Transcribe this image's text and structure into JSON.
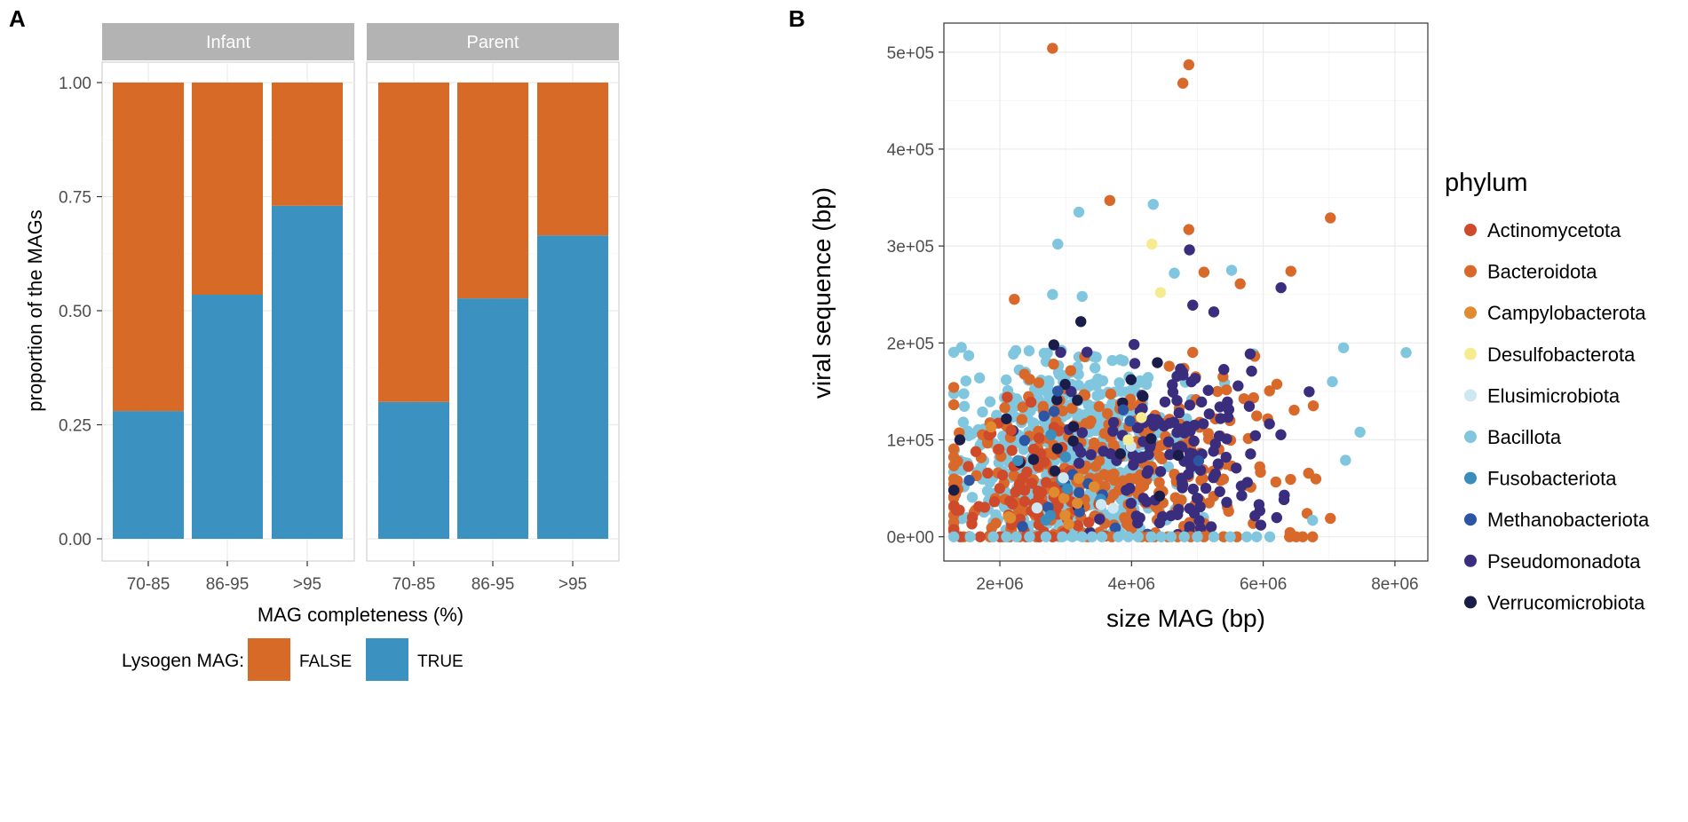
{
  "panel_labels": {
    "a": "A",
    "b": "B"
  },
  "colors": {
    "false_fill": "#D86A28",
    "true_fill": "#3B92C0",
    "strip_bg": "#B3B3B3",
    "strip_text": "#ffffff",
    "grid": "#EBEBEB",
    "axis_text": "#4D4D4D",
    "panel_border": "#C8C8C8",
    "phylum": {
      "Actinomycetota": "#CF4A2A",
      "Bacteroidota": "#D8692B",
      "Campylobacterota": "#E08B2F",
      "Desulfobacterota": "#F6EB91",
      "Elusimicrobiota": "#CDE8F0",
      "Bacillota": "#80C6DE",
      "Fusobacteriota": "#3A8DBD",
      "Methanobacteriota": "#2C55A3",
      "Pseudomonadota": "#3A2D7E",
      "Verrucomicrobiota": "#1A1C4A"
    }
  },
  "chart_data": [
    {
      "type": "bar",
      "stacked": true,
      "facets": [
        "Infant",
        "Parent"
      ],
      "categories": [
        "70-85",
        "86-95",
        ">95"
      ],
      "series": [
        {
          "name": "TRUE",
          "facet_values": {
            "Infant": [
              0.28,
              0.535,
              0.73
            ],
            "Parent": [
              0.3,
              0.527,
              0.665
            ]
          }
        },
        {
          "name": "FALSE",
          "facet_values": {
            "Infant": [
              0.72,
              0.465,
              0.27
            ],
            "Parent": [
              0.7,
              0.473,
              0.335
            ]
          }
        }
      ],
      "xlabel": "MAG completeness (%)",
      "ylabel": "proportion of the MAGs",
      "ylim": [
        0,
        1
      ],
      "yticks": [
        0.0,
        0.25,
        0.5,
        0.75,
        1.0
      ],
      "ytick_labels": [
        "0.00",
        "0.25",
        "0.50",
        "0.75",
        "1.00"
      ],
      "grid": true,
      "legend": {
        "title": "Lysogen MAG:",
        "placement": "bottom",
        "entries": [
          "FALSE",
          "TRUE"
        ]
      }
    },
    {
      "type": "scatter",
      "xlabel": "size MAG (bp)",
      "ylabel": "viral sequence (bp)",
      "xlim": [
        1150000,
        8500000
      ],
      "ylim": [
        -25000,
        530000
      ],
      "xticks": [
        2000000,
        4000000,
        6000000,
        8000000
      ],
      "xtick_labels": [
        "2e+06",
        "4e+06",
        "6e+06",
        "8e+06"
      ],
      "yticks": [
        0,
        100000,
        200000,
        300000,
        400000,
        500000
      ],
      "ytick_labels": [
        "0e+00",
        "1e+05",
        "2e+05",
        "3e+05",
        "4e+05",
        "5e+05"
      ],
      "grid": true,
      "legend": {
        "title": "phylum",
        "placement": "right",
        "entries": [
          "Actinomycetota",
          "Bacteroidota",
          "Campylobacterota",
          "Desulfobacterota",
          "Elusimicrobiota",
          "Bacillota",
          "Fusobacteriota",
          "Methanobacteriota",
          "Pseudomonadota",
          "Verrucomicrobiota"
        ]
      },
      "highlight_points": [
        {
          "phylum": "Bacteroidota",
          "x": 2800000,
          "y": 504000
        },
        {
          "phylum": "Bacteroidota",
          "x": 4870000,
          "y": 487000
        },
        {
          "phylum": "Bacteroidota",
          "x": 4780000,
          "y": 468000
        },
        {
          "phylum": "Bacteroidota",
          "x": 3670000,
          "y": 347000
        },
        {
          "phylum": "Bacteroidota",
          "x": 7020000,
          "y": 329000
        },
        {
          "phylum": "Bacteroidota",
          "x": 4870000,
          "y": 317000
        },
        {
          "phylum": "Bacteroidota",
          "x": 6420000,
          "y": 274000
        },
        {
          "phylum": "Bacteroidota",
          "x": 5100000,
          "y": 273000
        },
        {
          "phylum": "Bacteroidota",
          "x": 5650000,
          "y": 261000
        },
        {
          "phylum": "Bacteroidota",
          "x": 2220000,
          "y": 245000
        },
        {
          "phylum": "Bacteroidota",
          "x": 7020000,
          "y": 19000
        },
        {
          "phylum": "Bacillota",
          "x": 4330000,
          "y": 343000
        },
        {
          "phylum": "Bacillota",
          "x": 3200000,
          "y": 335000
        },
        {
          "phylum": "Bacillota",
          "x": 2880000,
          "y": 302000
        },
        {
          "phylum": "Bacillota",
          "x": 5520000,
          "y": 275000
        },
        {
          "phylum": "Bacillota",
          "x": 4650000,
          "y": 272000
        },
        {
          "phylum": "Bacillota",
          "x": 3250000,
          "y": 248000
        },
        {
          "phylum": "Bacillota",
          "x": 2800000,
          "y": 250000
        },
        {
          "phylum": "Bacillota",
          "x": 8170000,
          "y": 190000
        },
        {
          "phylum": "Bacillota",
          "x": 7220000,
          "y": 195000
        },
        {
          "phylum": "Bacillota",
          "x": 7470000,
          "y": 108000
        },
        {
          "phylum": "Bacillota",
          "x": 7050000,
          "y": 160000
        },
        {
          "phylum": "Bacillota",
          "x": 7250000,
          "y": 79000
        },
        {
          "phylum": "Bacillota",
          "x": 6750000,
          "y": 17000
        },
        {
          "phylum": "Desulfobacterota",
          "x": 4310000,
          "y": 302000
        },
        {
          "phylum": "Desulfobacterota",
          "x": 4440000,
          "y": 252000
        },
        {
          "phylum": "Desulfobacterota",
          "x": 4150000,
          "y": 123000
        },
        {
          "phylum": "Desulfobacterota",
          "x": 3950000,
          "y": 100000
        },
        {
          "phylum": "Pseudomonadota",
          "x": 4880000,
          "y": 296000
        },
        {
          "phylum": "Pseudomonadota",
          "x": 6270000,
          "y": 257000
        },
        {
          "phylum": "Pseudomonadota",
          "x": 4930000,
          "y": 239000
        },
        {
          "phylum": "Pseudomonadota",
          "x": 5250000,
          "y": 232000
        },
        {
          "phylum": "Verrucomicrobiota",
          "x": 3230000,
          "y": 222000
        },
        {
          "phylum": "Verrucomicrobiota",
          "x": 2820000,
          "y": 198000
        }
      ],
      "clusters": [
        {
          "phylum": "Bacillota",
          "n": 620,
          "x_mean": 3000000,
          "x_sd": 750000,
          "y_mean": 80000,
          "y_sd": 60000
        },
        {
          "phylum": "Bacteroidota",
          "n": 300,
          "x_mean": 3700000,
          "x_sd": 1300000,
          "y_mean": 75000,
          "y_sd": 60000
        },
        {
          "phylum": "Pseudomonadota",
          "n": 150,
          "x_mean": 4600000,
          "x_sd": 800000,
          "y_mean": 90000,
          "y_sd": 55000
        },
        {
          "phylum": "Actinomycetota",
          "n": 90,
          "x_mean": 2400000,
          "x_sd": 500000,
          "y_mean": 45000,
          "y_sd": 40000
        },
        {
          "phylum": "Verrucomicrobiota",
          "n": 22,
          "x_mean": 3400000,
          "x_sd": 900000,
          "y_mean": 90000,
          "y_sd": 50000
        },
        {
          "phylum": "Methanobacteriota",
          "n": 18,
          "x_mean": 3000000,
          "x_sd": 900000,
          "y_mean": 70000,
          "y_sd": 45000
        },
        {
          "phylum": "Campylobacterota",
          "n": 10,
          "x_mean": 2600000,
          "x_sd": 600000,
          "y_mean": 40000,
          "y_sd": 30000
        },
        {
          "phylum": "Fusobacteriota",
          "n": 8,
          "x_mean": 2900000,
          "x_sd": 600000,
          "y_mean": 50000,
          "y_sd": 35000
        },
        {
          "phylum": "Elusimicrobiota",
          "n": 6,
          "x_mean": 3200000,
          "x_sd": 700000,
          "y_mean": 30000,
          "y_sd": 30000
        }
      ],
      "zero_row": [
        {
          "phylum": "Bacteroidota",
          "x_values": [
            1450000,
            1850000,
            2050000,
            2150000,
            2300000,
            2550000,
            3700000,
            4150000,
            4250000,
            4350000,
            4550000,
            4700000,
            4900000,
            5100000,
            5400000,
            5600000,
            6400000,
            6500000,
            6600000,
            6750000
          ]
        },
        {
          "phylum": "Actinomycetota",
          "x_values": [
            1400000,
            1700000,
            2000000,
            2400000,
            2600000,
            2800000
          ]
        },
        {
          "phylum": "Bacillota",
          "x_values": [
            1300000,
            1550000,
            1900000,
            2100000,
            2250000,
            2450000,
            2700000,
            2950000,
            3100000,
            3250000,
            3400000,
            3550000,
            3800000,
            3950000,
            4100000,
            4300000,
            4450000,
            4600000,
            4800000,
            5000000,
            5250000,
            5500000,
            5750000,
            5900000,
            6100000
          ]
        }
      ]
    }
  ]
}
